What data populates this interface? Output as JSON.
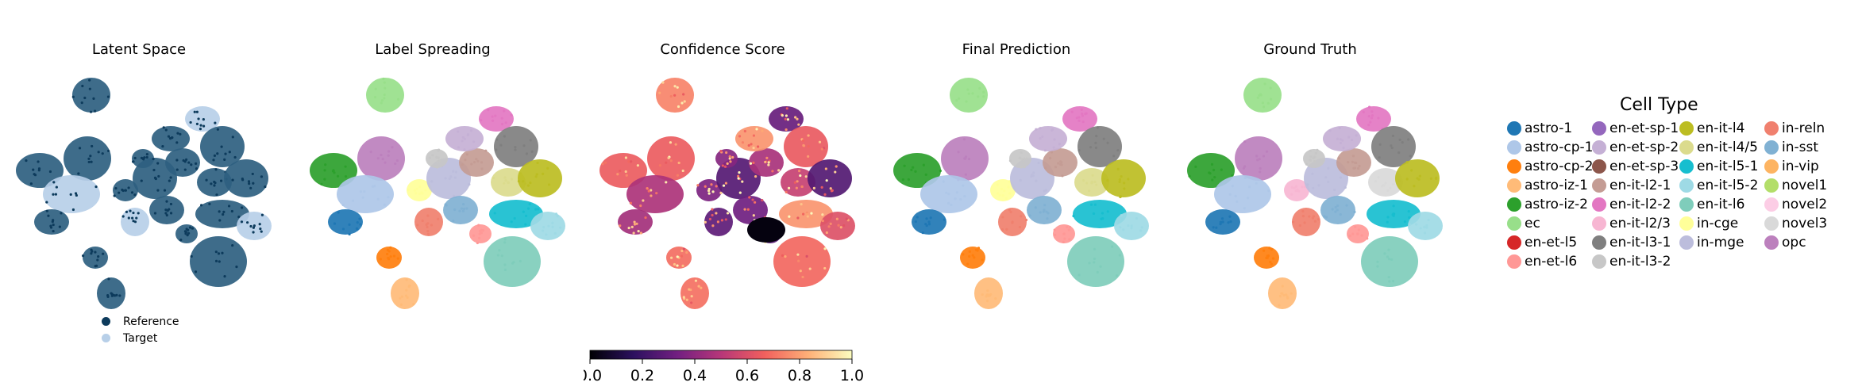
{
  "panels": [
    {
      "title": "Latent Space",
      "mode": "latent"
    },
    {
      "title": "Label Spreading",
      "mode": "label"
    },
    {
      "title": "Confidence Score",
      "mode": "confidence"
    },
    {
      "title": "Final Prediction",
      "mode": "label"
    },
    {
      "title": "Ground Truth",
      "mode": "truth"
    }
  ],
  "latent_legend": [
    {
      "label": "Reference",
      "color": "#0d3b5c"
    },
    {
      "label": "Target",
      "color": "#b7cfe8"
    }
  ],
  "colorbar": {
    "ticks": [
      "0.0",
      "0.2",
      "0.4",
      "0.6",
      "0.8",
      "1.0"
    ],
    "range": [
      0.0,
      1.0
    ],
    "colors": [
      "#000004",
      "#2c115f",
      "#721f81",
      "#b73779",
      "#f1605d",
      "#feb078",
      "#fcfdbf"
    ]
  },
  "legend": {
    "title": "Cell Type",
    "columns": [
      [
        {
          "label": "astro-1",
          "color": "#1f77b4"
        },
        {
          "label": "astro-cp-1",
          "color": "#aec7e8"
        },
        {
          "label": "astro-cp-2",
          "color": "#ff7f0e"
        },
        {
          "label": "astro-iz-1",
          "color": "#ffbb78"
        },
        {
          "label": "astro-iz-2",
          "color": "#2ca02c"
        },
        {
          "label": "ec",
          "color": "#98df8a"
        },
        {
          "label": "en-et-l5",
          "color": "#d62728"
        },
        {
          "label": "en-et-l6",
          "color": "#ff9896"
        }
      ],
      [
        {
          "label": "en-et-sp-1",
          "color": "#9467bd"
        },
        {
          "label": "en-et-sp-2",
          "color": "#c5b0d5"
        },
        {
          "label": "en-et-sp-3",
          "color": "#8c564b"
        },
        {
          "label": "en-it-l2-1",
          "color": "#c49c94"
        },
        {
          "label": "en-it-l2-2",
          "color": "#e377c2"
        },
        {
          "label": "en-it-l2/3",
          "color": "#f7b6d2"
        },
        {
          "label": "en-it-l3-1",
          "color": "#7f7f7f"
        },
        {
          "label": "en-it-l3-2",
          "color": "#c7c7c7"
        }
      ],
      [
        {
          "label": "en-it-l4",
          "color": "#bcbd22"
        },
        {
          "label": "en-it-l4/5",
          "color": "#dbdb8d"
        },
        {
          "label": "en-it-l5-1",
          "color": "#17becf"
        },
        {
          "label": "en-it-l5-2",
          "color": "#9edae5"
        },
        {
          "label": "en-it-l6",
          "color": "#7fcdbb"
        },
        {
          "label": "in-cge",
          "color": "#ffff99"
        },
        {
          "label": "in-mge",
          "color": "#bcbddc"
        }
      ],
      [
        {
          "label": "in-reln",
          "color": "#f0806e"
        },
        {
          "label": "in-sst",
          "color": "#80b1d3"
        },
        {
          "label": "in-vip",
          "color": "#fdb462"
        },
        {
          "label": "novel1",
          "color": "#b3de69"
        },
        {
          "label": "novel2",
          "color": "#fccde5"
        },
        {
          "label": "novel3",
          "color": "#d9d9d9"
        },
        {
          "label": "opc",
          "color": "#bc80bd"
        }
      ]
    ]
  },
  "chart_data": {
    "type": "scatter",
    "kind": "umap-embedding",
    "panels": [
      "Latent Space",
      "Label Spreading",
      "Confidence Score",
      "Final Prediction",
      "Ground Truth"
    ],
    "latent_series": [
      "Reference",
      "Target"
    ],
    "confidence_colorbar": {
      "range": [
        0.0,
        1.0
      ],
      "ticks": [
        0.0,
        0.2,
        0.4,
        0.6,
        0.8,
        1.0
      ],
      "colormap": "magma"
    },
    "legend_title": "Cell Type",
    "categories": [
      "astro-1",
      "astro-cp-1",
      "astro-cp-2",
      "astro-iz-1",
      "astro-iz-2",
      "ec",
      "en-et-l5",
      "en-et-l6",
      "en-et-sp-1",
      "en-et-sp-2",
      "en-et-sp-3",
      "en-it-l2-1",
      "en-it-l2-2",
      "en-it-l2/3",
      "en-it-l3-1",
      "en-it-l3-2",
      "en-it-l4",
      "en-it-l4/5",
      "en-it-l5-1",
      "en-it-l5-2",
      "en-it-l6",
      "in-cge",
      "in-mge",
      "in-reln",
      "in-sst",
      "in-vip",
      "novel1",
      "novel2",
      "novel3",
      "opc"
    ]
  }
}
